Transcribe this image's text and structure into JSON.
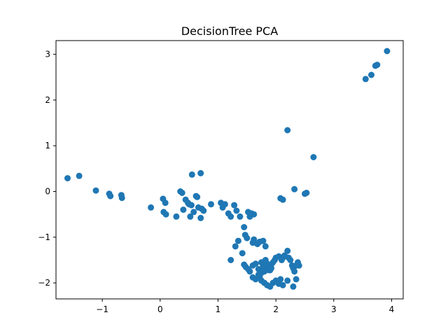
{
  "chart_data": {
    "type": "scatter",
    "title": "DecisionTree PCA",
    "xlabel": "",
    "ylabel": "",
    "xlim": [
      -1.8,
      4.2
    ],
    "ylim": [
      -2.35,
      3.3
    ],
    "xticks": [
      -1,
      0,
      1,
      2,
      3,
      4
    ],
    "yticks": [
      -2,
      -1,
      0,
      1,
      2,
      3
    ],
    "xtick_labels": [
      "−1",
      "0",
      "1",
      "2",
      "3",
      "4"
    ],
    "ytick_labels": [
      "−2",
      "−1",
      "0",
      "1",
      "2",
      "3"
    ],
    "grid": false,
    "legend": "none",
    "colors": {
      "marker": "#1f77b4",
      "axes": "#000000",
      "background": "#ffffff"
    },
    "series": [
      {
        "x": [
          -1.6,
          -1.4,
          -1.11,
          -0.88,
          -0.86,
          -0.67,
          -0.66,
          -0.16,
          0.05,
          0.06,
          0.09,
          0.1,
          0.28,
          0.35,
          0.38,
          0.4,
          0.44,
          0.48,
          0.5,
          0.52,
          0.54,
          0.58,
          0.62,
          0.64,
          0.66,
          0.7,
          0.72,
          0.75,
          0.88,
          0.55,
          0.7,
          1.05,
          1.08,
          1.12,
          1.18,
          1.22,
          1.28,
          1.32,
          1.38,
          1.52,
          1.55,
          1.58,
          1.62,
          1.45,
          1.47,
          1.5,
          1.3,
          1.35,
          1.42,
          1.45,
          1.48,
          1.52,
          1.55,
          1.6,
          1.65,
          1.7,
          1.75,
          1.78,
          1.8,
          1.82,
          1.85,
          1.88,
          1.9,
          1.92,
          1.95,
          1.98,
          2.0,
          2.05,
          2.1,
          2.12,
          2.15,
          2.2,
          2.22,
          2.25,
          2.28,
          2.3,
          2.32,
          2.35,
          2.38,
          2.4,
          1.22,
          1.6,
          1.65,
          1.75,
          1.72,
          1.8,
          1.85,
          1.9,
          1.95,
          2.0,
          2.05,
          1.7,
          1.75,
          1.8,
          1.85,
          1.88,
          1.92,
          2.08,
          2.12,
          2.2,
          2.3,
          2.35,
          1.6,
          1.62,
          1.68,
          1.72,
          1.78,
          1.82,
          2.08,
          2.12,
          2.32,
          2.5,
          2.53,
          2.65,
          2.2,
          3.55,
          3.65,
          3.72,
          3.75,
          3.92
        ],
        "y": [
          0.29,
          0.34,
          0.02,
          -0.05,
          -0.1,
          -0.08,
          -0.14,
          -0.35,
          -0.16,
          -0.45,
          -0.25,
          -0.5,
          -0.55,
          0.0,
          -0.03,
          -0.4,
          -0.18,
          -0.25,
          -0.28,
          -0.55,
          -0.3,
          -0.45,
          -0.1,
          -0.12,
          -0.35,
          -0.58,
          -0.38,
          -0.42,
          -0.28,
          0.37,
          0.4,
          -0.25,
          -0.35,
          -0.28,
          -0.48,
          -0.55,
          -0.3,
          -0.42,
          -0.55,
          -0.45,
          -0.55,
          -0.48,
          -0.5,
          -0.78,
          -0.95,
          -1.02,
          -1.2,
          -1.08,
          -1.35,
          -1.6,
          -1.65,
          -1.7,
          -1.75,
          -1.62,
          -1.58,
          -1.7,
          -1.55,
          -1.62,
          -1.68,
          -1.5,
          -1.58,
          -1.65,
          -1.72,
          -1.6,
          -1.55,
          -1.5,
          -1.45,
          -1.42,
          -1.5,
          -1.45,
          -1.4,
          -1.3,
          -1.45,
          -1.5,
          -1.62,
          -1.68,
          -1.75,
          -1.62,
          -1.55,
          -1.62,
          -1.5,
          -1.88,
          -1.92,
          -1.95,
          -1.88,
          -2.0,
          -2.05,
          -2.08,
          -2.0,
          -1.95,
          -2.02,
          -1.82,
          -1.78,
          -1.75,
          -1.7,
          -1.72,
          -1.68,
          -1.92,
          -2.05,
          -1.95,
          -2.08,
          -1.92,
          -1.12,
          -1.05,
          -1.15,
          -1.1,
          -1.08,
          -1.2,
          -0.15,
          -0.18,
          0.05,
          -0.05,
          -0.03,
          0.75,
          1.34,
          2.46,
          2.55,
          2.75,
          2.77,
          3.07
        ]
      }
    ]
  }
}
